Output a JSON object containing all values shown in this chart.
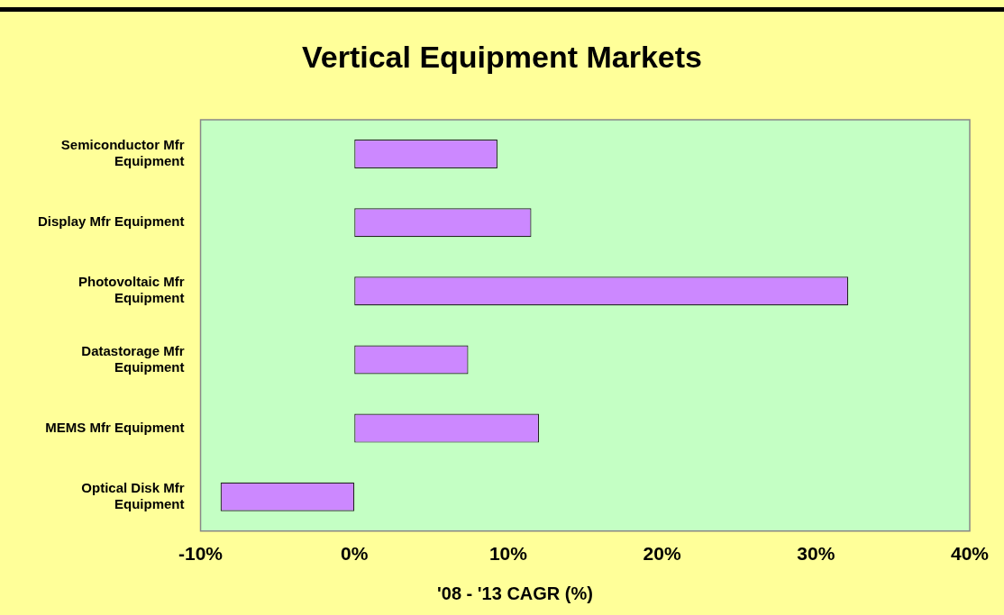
{
  "chart_data": {
    "type": "bar",
    "orientation": "horizontal",
    "title": "Vertical Equipment Markets",
    "xlabel": "'08 - '13 CAGR (%)",
    "categories": [
      "Semiconductor Mfr Equipment",
      "Display Mfr Equipment",
      "Photovoltaic Mfr Equipment",
      "Datastorage Mfr Equipment",
      "MEMS Mfr Equipment",
      "Optical Disk Mfr Equipment"
    ],
    "values": [
      9.3,
      11.5,
      32.1,
      7.4,
      12.0,
      -8.7
    ],
    "color": "#cc88ff",
    "xlim": [
      -10,
      40
    ],
    "xticks": [
      {
        "value": -10,
        "label": "-10%"
      },
      {
        "value": 0,
        "label": "0%"
      },
      {
        "value": 10,
        "label": "10%"
      },
      {
        "value": 20,
        "label": "20%"
      },
      {
        "value": 30,
        "label": "30%"
      },
      {
        "value": 40,
        "label": "40%"
      }
    ],
    "grid": false,
    "legend": false
  }
}
